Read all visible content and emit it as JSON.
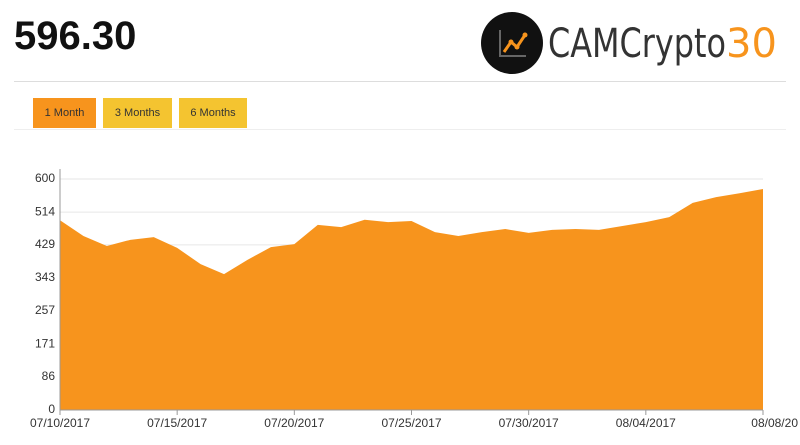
{
  "header": {
    "price": "596.30",
    "logo": {
      "brand": "CAMCrypto",
      "number": "30"
    }
  },
  "buttons": [
    "1 Month",
    "3 Months",
    "6 Months"
  ],
  "chart_data": {
    "type": "area",
    "color": "#f7941d",
    "categories": [
      "07/10/2017",
      null,
      null,
      null,
      null,
      "07/15/2017",
      null,
      null,
      null,
      null,
      "07/20/2017",
      null,
      null,
      null,
      null,
      "07/25/2017",
      null,
      null,
      null,
      null,
      "07/30/2017",
      null,
      null,
      null,
      null,
      "08/04/2017",
      null,
      null,
      null,
      null,
      "08/08/20"
    ],
    "values": [
      493,
      452,
      426,
      442,
      449,
      421,
      379,
      353,
      390,
      423,
      431,
      481,
      475,
      494,
      488,
      491,
      462,
      452,
      462,
      470,
      460,
      468,
      470,
      468,
      478,
      488,
      501,
      538,
      553,
      563,
      574
    ],
    "ylim": [
      0,
      600
    ],
    "yticks": [
      0,
      86,
      171,
      257,
      343,
      429,
      514,
      600
    ],
    "grid": true
  }
}
